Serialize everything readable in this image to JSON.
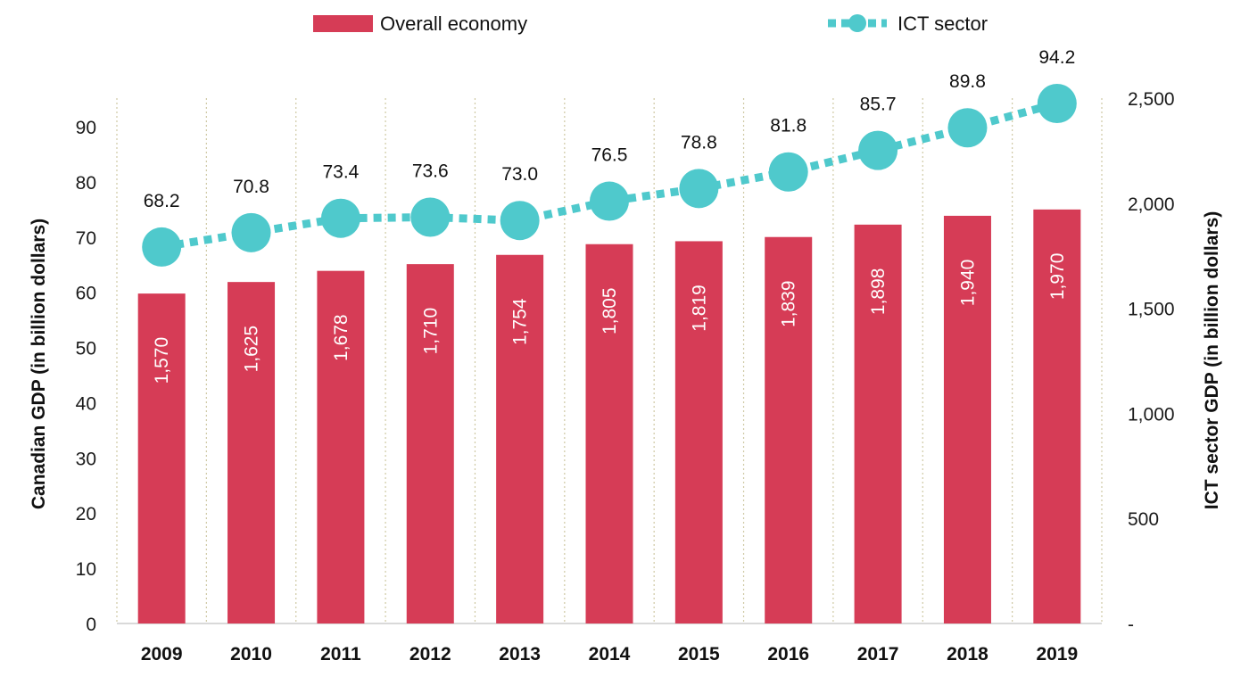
{
  "chart_data": {
    "type": "bar",
    "categories": [
      "2009",
      "2010",
      "2011",
      "2012",
      "2013",
      "2014",
      "2015",
      "2016",
      "2017",
      "2018",
      "2019"
    ],
    "series": [
      {
        "name": "Overall economy",
        "type": "bar",
        "axis": "right",
        "values": [
          1570,
          1625,
          1678,
          1710,
          1754,
          1805,
          1819,
          1839,
          1898,
          1940,
          1970
        ],
        "labels": [
          "1,570",
          "1,625",
          "1,678",
          "1,710",
          "1,754",
          "1,805",
          "1,819",
          "1,839",
          "1,898",
          "1,940",
          "1,970"
        ],
        "color": "#d63c56"
      },
      {
        "name": "ICT sector",
        "type": "line",
        "axis": "left",
        "values": [
          68.2,
          70.8,
          73.4,
          73.6,
          73.0,
          76.5,
          78.8,
          81.8,
          85.7,
          89.8,
          94.2
        ],
        "labels": [
          "68.2",
          "70.8",
          "73.4",
          "73.6",
          "73.0",
          "76.5",
          "78.8",
          "81.8",
          "85.7",
          "89.8",
          "94.2"
        ],
        "color": "#4fc9cc"
      }
    ],
    "left_axis": {
      "label": "Canadian GDP (in billion dollars)",
      "range": [
        0,
        90
      ],
      "ticks": [
        0,
        10,
        20,
        30,
        40,
        50,
        60,
        70,
        80,
        90
      ],
      "tick_labels": [
        "0",
        "10",
        "20",
        "30",
        "40",
        "50",
        "60",
        "70",
        "80",
        "90"
      ]
    },
    "right_axis": {
      "label": "ICT sector GDP (in billion dollars)",
      "range": [
        0,
        2500
      ],
      "ticks": [
        0,
        500,
        1000,
        1500,
        2000,
        2500
      ],
      "tick_labels": [
        "-",
        "500",
        "1,000",
        "1,500",
        "2,000",
        "2,500"
      ]
    },
    "legend": {
      "placement": "top",
      "items": [
        "Overall economy",
        "ICT sector"
      ]
    },
    "gridlines": "vertical-dotted"
  }
}
